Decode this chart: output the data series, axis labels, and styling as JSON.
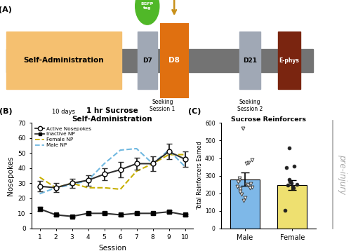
{
  "panel_A": {
    "self_admin_color": "#F5C070",
    "bar_color": "#737373",
    "d7_color": "#A0A8B5",
    "d8_color": "#E07010",
    "d8_edge_color": "#C05000",
    "ephys_color": "#7A2510",
    "egfp_color": "#50B828",
    "arrow_color": "#C8901A",
    "text_color": "#303030"
  },
  "panel_B": {
    "title": "1 hr Sucrose\nSelf-Administration",
    "xlabel": "Session",
    "ylabel": "Nosepokes",
    "ylim": [
      0,
      70
    ],
    "sessions": [
      1,
      2,
      3,
      4,
      5,
      6,
      7,
      8,
      9,
      10
    ],
    "active_mean": [
      28,
      27,
      30,
      32,
      36,
      39,
      43,
      43,
      51,
      46
    ],
    "active_err": [
      3.5,
      3.0,
      3.0,
      3.5,
      4.0,
      5.0,
      4.0,
      5.0,
      5.0,
      5.0
    ],
    "inactive_mean": [
      13,
      9,
      8,
      10,
      10,
      9,
      10,
      10,
      11,
      9
    ],
    "inactive_err": [
      1.5,
      0.8,
      0.8,
      1.2,
      1.0,
      0.8,
      0.8,
      0.8,
      1.0,
      0.8
    ],
    "female_np": [
      34,
      27,
      30,
      27,
      27,
      26,
      38,
      43,
      49,
      49
    ],
    "male_np": [
      23,
      27,
      29,
      32,
      43,
      52,
      53,
      43,
      52,
      41
    ],
    "active_color": "#303030",
    "inactive_color": "#303030",
    "female_color": "#C8B000",
    "male_color": "#70B8E0",
    "legend_entries": [
      "Active Nosepokes",
      "Inactive NP",
      "Female NP",
      "Male NP"
    ]
  },
  "panel_C": {
    "title": "Sucrose Reinforcers",
    "ylabel": "Total Reinforcers Earned",
    "ylim": [
      0,
      600
    ],
    "male_mean": 280,
    "male_err": 38,
    "female_mean": 248,
    "female_err": 28,
    "male_color": "#7EB8E8",
    "female_color": "#EEE070",
    "male_dots_open": [
      570,
      390,
      375,
      370,
      285,
      275,
      265,
      255,
      250,
      245,
      240,
      235,
      230,
      225,
      215,
      205,
      195,
      175,
      160
    ],
    "female_dots_filled": [
      460,
      355,
      345,
      280,
      268,
      260,
      252,
      248,
      240,
      232,
      102
    ],
    "male_dot_color": "#404040",
    "female_dot_color": "#202020",
    "categories": [
      "Male",
      "Female"
    ]
  },
  "pre_injury_text": "pre-injury",
  "pre_injury_color": "#AAAAAA"
}
